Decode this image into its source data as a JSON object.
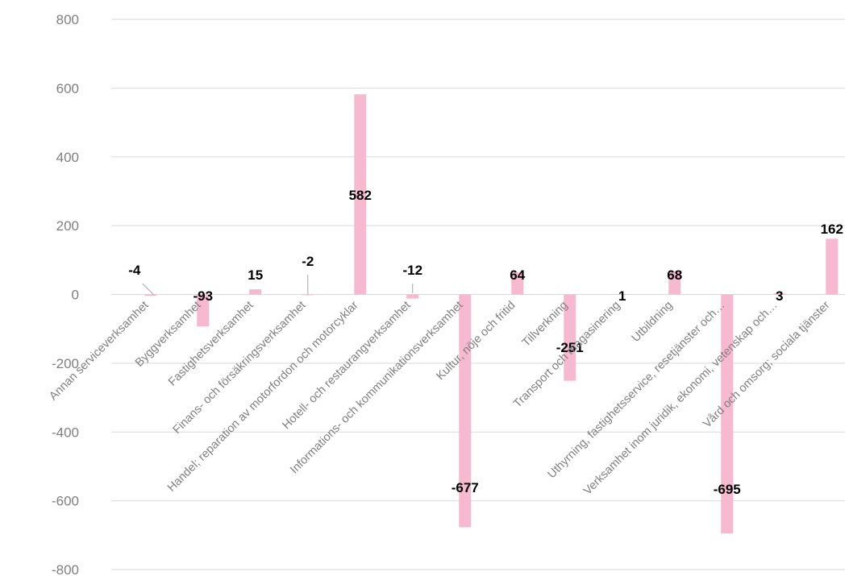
{
  "chart_data": {
    "type": "bar",
    "title": "",
    "xlabel": "",
    "ylabel": "",
    "ylim": [
      -800,
      800
    ],
    "yticks": [
      800,
      600,
      400,
      200,
      0,
      -200,
      -400,
      -600,
      -800
    ],
    "grid": true,
    "legend": "none",
    "bar_color": "#f7b9cf",
    "categories": [
      "Annan serviceverksamhet",
      "Byggverksamhet",
      "Fastighetsverksamhet",
      "Finans- och försäkringsverksamhet",
      "Handel; reparation av motorfordon och motorcyklar",
      "Hotell- och restaurangverksamhet",
      "Informations- och kommunikationsverksamhet",
      "Kultur, nöje och fritid",
      "Tillverkning",
      "Transport och magasinering",
      "Utbildning",
      "Uthyrning, fastighetsservice, resetjänster och…",
      "Verksamhet inom juridik, ekonomi, vetenskap och…",
      "Vård och omsorg; sociala tjänster"
    ],
    "values": [
      -4,
      -93,
      15,
      -2,
      582,
      -12,
      -677,
      64,
      -251,
      1,
      68,
      -695,
      3,
      162
    ],
    "data_labels": [
      "-4",
      "-93",
      "15",
      "-2",
      "582",
      "-12",
      "-677",
      "64",
      "-251",
      "1",
      "68",
      "-695",
      "3",
      "162"
    ]
  }
}
